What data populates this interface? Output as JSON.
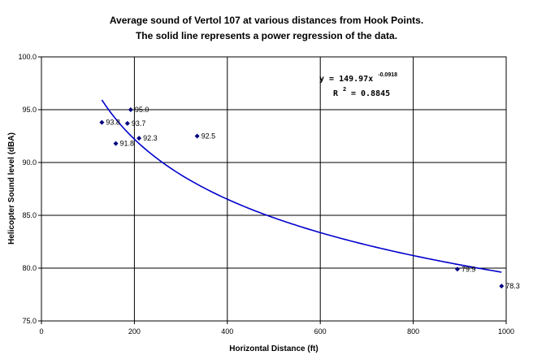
{
  "chart_data": {
    "type": "scatter",
    "title": "Average sound of Vertol 107 at various distances from Hook Points.",
    "subtitle": "The solid line represents a power regression of the data.",
    "xlabel": "Horizontal Distance (ft)",
    "ylabel": "Helicopter Sound level (dBA)",
    "xlim": [
      0,
      1000
    ],
    "ylim": [
      75,
      100
    ],
    "x_ticks": [
      0,
      200,
      400,
      600,
      800,
      1000
    ],
    "x_tick_labels": [
      "0",
      "200",
      "400",
      "600",
      "800",
      "1000"
    ],
    "y_ticks": [
      75,
      80,
      85,
      90,
      95,
      100
    ],
    "y_tick_labels": [
      "75.0",
      "80.0",
      "85.0",
      "90.0",
      "95.0",
      "100.0"
    ],
    "grid": true,
    "legend": "none",
    "series": [
      {
        "points": [
          {
            "x": 130,
            "y": 93.8,
            "label": "93.8"
          },
          {
            "x": 160,
            "y": 91.8,
            "label": "91.8"
          },
          {
            "x": 185,
            "y": 93.7,
            "label": "93.7"
          },
          {
            "x": 192,
            "y": 95.0,
            "label": "95.0"
          },
          {
            "x": 210,
            "y": 92.3,
            "label": "92.3"
          },
          {
            "x": 335,
            "y": 92.5,
            "label": "92.5"
          },
          {
            "x": 895,
            "y": 79.9,
            "label": "79.9"
          },
          {
            "x": 990,
            "y": 78.3,
            "label": "78.3"
          }
        ],
        "marker_color": "#000080"
      }
    ],
    "trendline": {
      "type": "power",
      "a": 149.97,
      "b": -0.0918,
      "x_range": [
        130,
        990
      ],
      "color": "#0000cc",
      "equation_main": "y = 149.97x",
      "equation_exponent": "-0.0918",
      "r2_base": "R",
      "r2_sup": "2",
      "r2_value": " = 0.8845"
    }
  }
}
